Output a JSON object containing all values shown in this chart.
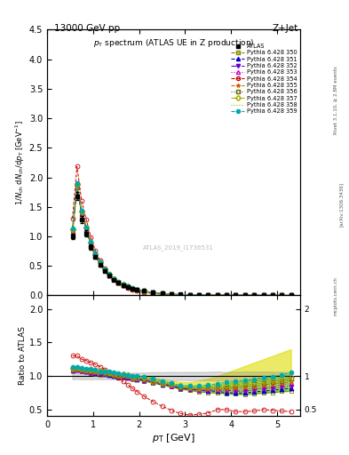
{
  "title_top_left": "13000 GeV pp",
  "title_top_right": "Z+Jet",
  "plot_title": "p_{T} spectrum (ATLAS UE in Z production)",
  "xlabel": "p_{T} [GeV]",
  "ylabel_main": "1/N_{ch} dN_{ch}/dp_{T} [GeV^{-1}]",
  "ylabel_ratio": "Ratio to ATLAS",
  "watermark": "ATLAS_2019_I1736531",
  "xlim": [
    0,
    5.5
  ],
  "ylim_main": [
    0,
    4.5
  ],
  "ylim_ratio": [
    0.4,
    2.2
  ],
  "series_labels": [
    "ATLAS",
    "Pythia 6.428 350",
    "Pythia 6.428 351",
    "Pythia 6.428 352",
    "Pythia 6.428 353",
    "Pythia 6.428 354",
    "Pythia 6.428 355",
    "Pythia 6.428 356",
    "Pythia 6.428 357",
    "Pythia 6.428 358",
    "Pythia 6.428 359"
  ],
  "series_colors": [
    "#000000",
    "#808000",
    "#0000cc",
    "#6600cc",
    "#cc00cc",
    "#cc0000",
    "#cc6600",
    "#666600",
    "#aaaa00",
    "#88bb00",
    "#00aaaa"
  ],
  "series_markers": [
    "s",
    "s",
    "^",
    "v",
    "^",
    "o",
    "*",
    "s",
    "D",
    "none",
    "o"
  ],
  "series_filled": [
    true,
    false,
    true,
    true,
    false,
    false,
    true,
    false,
    false,
    false,
    true
  ],
  "series_linestyles": [
    "none",
    "--",
    "--",
    "-.",
    ":",
    "--",
    "--",
    ":",
    "-.",
    ":",
    "--"
  ],
  "pt_main": [
    0.55,
    0.65,
    0.75,
    0.85,
    0.95,
    1.05,
    1.15,
    1.25,
    1.35,
    1.45,
    1.55,
    1.65,
    1.75,
    1.85,
    1.95,
    2.1,
    2.3,
    2.5,
    2.7,
    2.9,
    3.1,
    3.3,
    3.5,
    3.7,
    3.9,
    4.1,
    4.3,
    4.5,
    4.7,
    4.9,
    5.1,
    5.3
  ],
  "atlas_y": [
    1.0,
    1.68,
    1.28,
    1.05,
    0.82,
    0.65,
    0.52,
    0.42,
    0.34,
    0.27,
    0.22,
    0.18,
    0.15,
    0.12,
    0.1,
    0.078,
    0.052,
    0.035,
    0.024,
    0.017,
    0.013,
    0.01,
    0.008,
    0.006,
    0.005,
    0.004,
    0.003,
    0.0025,
    0.002,
    0.0016,
    0.0013,
    0.001
  ],
  "atlas_yerr": [
    0.05,
    0.07,
    0.06,
    0.05,
    0.04,
    0.03,
    0.025,
    0.02,
    0.016,
    0.013,
    0.011,
    0.009,
    0.007,
    0.006,
    0.005,
    0.004,
    0.003,
    0.002,
    0.0015,
    0.001,
    0.0008,
    0.0006,
    0.0005,
    0.0004,
    0.0003,
    0.00025,
    0.0002,
    0.00016,
    0.00013,
    0.0001,
    8e-05,
    6e-05
  ],
  "p354_ratio": [
    1.3,
    1.3,
    1.25,
    1.23,
    1.2,
    1.17,
    1.14,
    1.1,
    1.06,
    1.02,
    0.97,
    0.92,
    0.87,
    0.82,
    0.77,
    0.7,
    0.62,
    0.55,
    0.49,
    0.44,
    0.42,
    0.43,
    0.45,
    0.5,
    0.5,
    0.47,
    0.47,
    0.48,
    0.5,
    0.49,
    0.48,
    0.47
  ],
  "p_close_ratio_low": [
    1.08,
    1.08,
    1.07,
    1.06,
    1.05,
    1.04,
    1.03,
    1.02,
    1.01,
    1.0,
    0.99,
    0.98,
    0.97,
    0.96,
    0.95,
    0.93,
    0.9,
    0.87,
    0.84,
    0.81,
    0.79,
    0.77,
    0.76,
    0.75,
    0.74,
    0.73,
    0.73,
    0.74,
    0.75,
    0.76,
    0.77,
    0.78
  ],
  "p_close_ratio_high": [
    1.12,
    1.13,
    1.12,
    1.11,
    1.1,
    1.09,
    1.08,
    1.07,
    1.06,
    1.05,
    1.04,
    1.03,
    1.02,
    1.01,
    1.0,
    0.98,
    0.95,
    0.92,
    0.89,
    0.86,
    0.85,
    0.85,
    0.86,
    0.88,
    0.9,
    0.92,
    0.94,
    0.96,
    0.98,
    1.0,
    1.02,
    1.05
  ],
  "band_yellow_low": [
    1.08,
    1.08,
    1.07,
    1.06,
    1.05,
    1.04,
    1.03,
    1.02,
    1.01,
    1.0,
    0.99,
    0.98,
    0.97,
    0.96,
    0.95,
    0.93,
    0.9,
    0.87,
    0.84,
    0.81,
    0.79,
    0.77,
    0.76,
    0.75,
    0.74,
    0.73,
    0.73,
    0.74,
    0.75,
    0.76,
    0.77,
    0.78
  ],
  "band_yellow_high": [
    1.13,
    1.14,
    1.13,
    1.12,
    1.11,
    1.1,
    1.09,
    1.08,
    1.07,
    1.06,
    1.05,
    1.04,
    1.03,
    1.02,
    1.01,
    1.0,
    0.98,
    0.95,
    0.93,
    0.91,
    0.91,
    0.93,
    0.96,
    1.0,
    1.05,
    1.1,
    1.15,
    1.2,
    1.25,
    1.3,
    1.35,
    1.4
  ],
  "band_green_low": [
    1.08,
    1.08,
    1.07,
    1.06,
    1.05,
    1.04,
    1.03,
    1.02,
    1.01,
    1.0,
    0.99,
    0.98,
    0.97,
    0.96,
    0.95,
    0.93,
    0.9,
    0.87,
    0.84,
    0.81,
    0.79,
    0.77,
    0.76,
    0.75,
    0.74,
    0.73,
    0.73,
    0.74,
    0.75,
    0.76,
    0.77,
    0.78
  ],
  "band_green_high": [
    1.12,
    1.12,
    1.11,
    1.1,
    1.09,
    1.08,
    1.07,
    1.06,
    1.05,
    1.04,
    1.03,
    1.02,
    1.01,
    1.0,
    0.99,
    0.97,
    0.94,
    0.91,
    0.88,
    0.85,
    0.84,
    0.84,
    0.85,
    0.87,
    0.89,
    0.91,
    0.93,
    0.95,
    0.97,
    0.99,
    1.01,
    1.03
  ]
}
